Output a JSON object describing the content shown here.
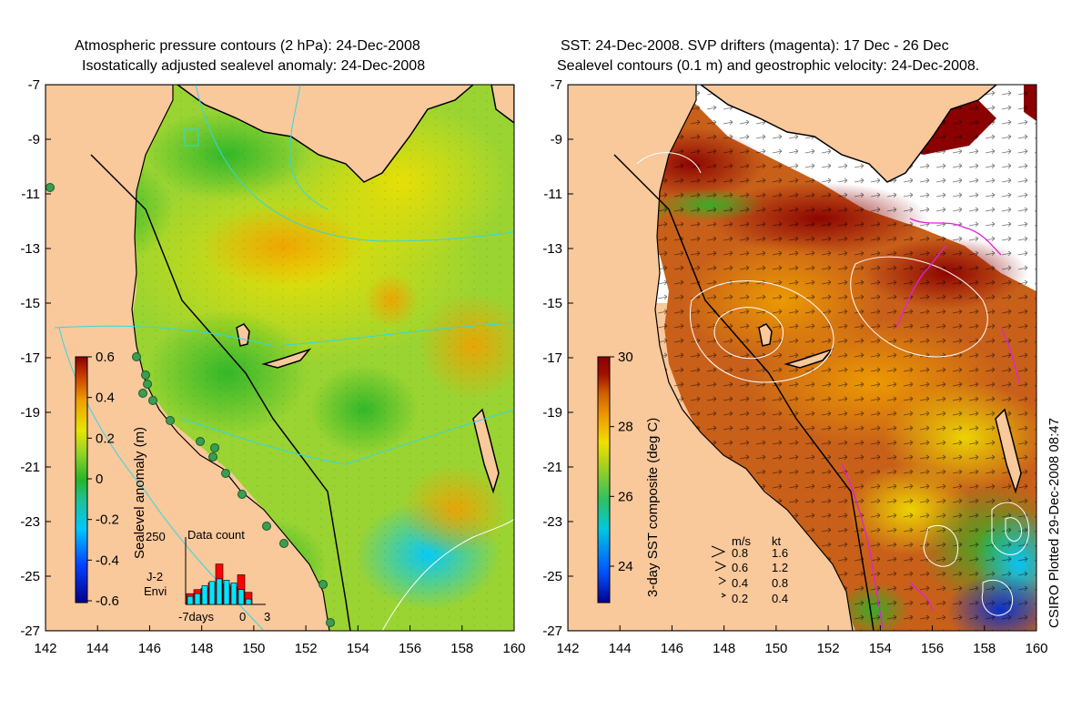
{
  "left_panel": {
    "title_line1": "Atmospheric pressure contours (2 hPa): 24-Dec-2008",
    "title_line2": "Isostatically adjusted sealevel anomaly: 24-Dec-2008",
    "x_ticks": [
      "142",
      "144",
      "146",
      "148",
      "150",
      "152",
      "154",
      "156",
      "158",
      "160"
    ],
    "y_ticks": [
      "-7",
      "-9",
      "-11",
      "-13",
      "-15",
      "-17",
      "-19",
      "-21",
      "-23",
      "-25",
      "-27"
    ],
    "colorbar": {
      "label": "Sealevel anomaly (m)",
      "ticks": [
        "0.6",
        "0.4",
        "0.2",
        "0",
        "-0.2",
        "-0.4",
        "-0.6"
      ],
      "colors": [
        "#00008b",
        "#0040ff",
        "#00c8ff",
        "#20c090",
        "#28b428",
        "#8cd228",
        "#e6e600",
        "#f0a000",
        "#c84000",
        "#8b0000"
      ]
    },
    "histogram": {
      "title": "Data count",
      "max_label": "250",
      "x_labels": [
        "-7days",
        "0",
        "3"
      ],
      "legend": [
        {
          "name": "J-2",
          "color": "#ff0000"
        },
        {
          "name": "Envi",
          "color": "#00e5ff"
        }
      ],
      "j2_counts": [
        40,
        55,
        60,
        80,
        150,
        75,
        65,
        110,
        45
      ],
      "envi_counts": [
        30,
        40,
        70,
        85,
        95,
        90,
        80,
        55,
        20
      ]
    }
  },
  "right_panel": {
    "title_line1": "SST: 24-Dec-2008. SVP drifters (magenta): 17 Dec - 26 Dec",
    "title_line2": "Sealevel contours (0.1 m) and geostrophic velocity: 24-Dec-2008.",
    "x_ticks": [
      "142",
      "144",
      "146",
      "148",
      "150",
      "152",
      "154",
      "156",
      "158",
      "160"
    ],
    "y_ticks": [
      "-7",
      "-9",
      "-11",
      "-13",
      "-15",
      "-17",
      "-19",
      "-21",
      "-23",
      "-25",
      "-27"
    ],
    "colorbar": {
      "label": "3-day SST composite (deg C)",
      "ticks": [
        "30",
        "28",
        "26",
        "24"
      ],
      "colors": [
        "#00008b",
        "#0050ff",
        "#00c8e0",
        "#30c060",
        "#a0d020",
        "#f0e000",
        "#f0a000",
        "#d06000",
        "#a01000",
        "#8b0000"
      ]
    },
    "velocity_legend": {
      "header": [
        "m/s",
        "kt"
      ],
      "rows": [
        [
          "0.8",
          "1.6"
        ],
        [
          "0.6",
          "1.2"
        ],
        [
          "0.4",
          "0.8"
        ],
        [
          "0.2",
          "0.4"
        ]
      ]
    }
  },
  "credit": "CSIRO Plotted 29-Dec-2008 08:47",
  "colors": {
    "land": "#f9c89b",
    "ocean_mid": "#8fd23a",
    "sst_warm": "#c85a14"
  }
}
